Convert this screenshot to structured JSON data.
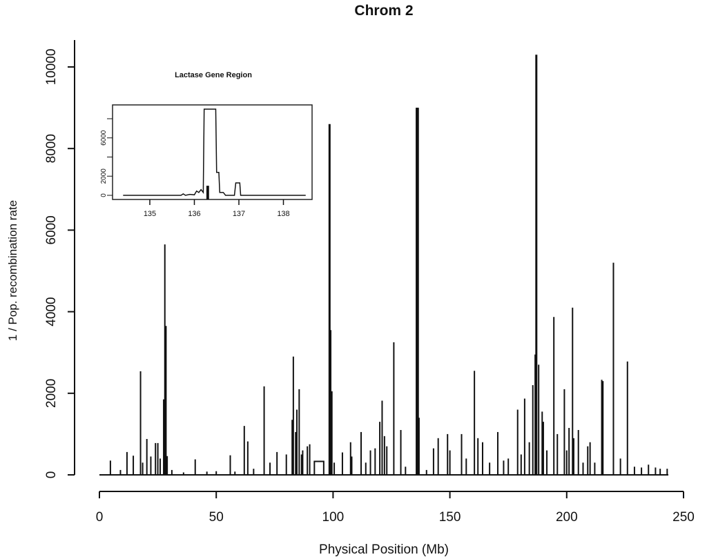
{
  "chart_data": {
    "type": "line",
    "title": "Chrom 2",
    "xlabel": "Physical Position (Mb)",
    "ylabel": "1 / Pop. recombination rate",
    "xlim": [
      0,
      250
    ],
    "ylim": [
      0,
      10000
    ],
    "xticks": [
      0,
      50,
      100,
      150,
      200,
      250
    ],
    "yticks": [
      0,
      2000,
      4000,
      6000,
      8000,
      10000
    ],
    "grid": false,
    "spikes": [
      [
        4.7,
        350
      ],
      [
        9,
        120
      ],
      [
        11.8,
        560
      ],
      [
        14.5,
        470
      ],
      [
        17.6,
        2540
      ],
      [
        18.5,
        300
      ],
      [
        20.3,
        880
      ],
      [
        22,
        450
      ],
      [
        24,
        780
      ],
      [
        25,
        780
      ],
      [
        26,
        400
      ],
      [
        27.5,
        1850
      ],
      [
        28,
        5650
      ],
      [
        28.5,
        3650
      ],
      [
        29,
        460
      ],
      [
        31,
        120
      ],
      [
        36,
        60
      ],
      [
        41,
        380
      ],
      [
        46,
        80
      ],
      [
        50,
        90
      ],
      [
        56,
        480
      ],
      [
        58,
        80
      ],
      [
        62,
        1200
      ],
      [
        63.5,
        820
      ],
      [
        66,
        150
      ],
      [
        70.5,
        2170
      ],
      [
        73,
        300
      ],
      [
        76,
        560
      ],
      [
        80,
        500
      ],
      [
        82.5,
        1350
      ],
      [
        83,
        2900
      ],
      [
        84,
        1050
      ],
      [
        84.5,
        1600
      ],
      [
        85.5,
        2100
      ],
      [
        86.5,
        500
      ],
      [
        87,
        600
      ],
      [
        89,
        700
      ],
      [
        90,
        750
      ],
      [
        98.5,
        8600
      ],
      [
        99,
        3550
      ],
      [
        99.5,
        2050
      ],
      [
        100.5,
        300
      ],
      [
        104,
        550
      ],
      [
        107.5,
        800
      ],
      [
        108,
        450
      ],
      [
        112,
        1050
      ],
      [
        114,
        300
      ],
      [
        116,
        600
      ],
      [
        118,
        650
      ],
      [
        120,
        1300
      ],
      [
        121,
        1820
      ],
      [
        122,
        950
      ],
      [
        123,
        700
      ],
      [
        126,
        3250
      ],
      [
        129,
        1100
      ],
      [
        131,
        200
      ],
      [
        135.8,
        9000
      ],
      [
        136,
        9000
      ],
      [
        136.3,
        9000
      ],
      [
        136.8,
        1400
      ],
      [
        140,
        120
      ],
      [
        143,
        650
      ],
      [
        145,
        900
      ],
      [
        149,
        1000
      ],
      [
        150,
        600
      ],
      [
        155,
        1000
      ],
      [
        157,
        400
      ],
      [
        160.5,
        2550
      ],
      [
        162,
        900
      ],
      [
        164,
        800
      ],
      [
        167,
        300
      ],
      [
        170.5,
        1050
      ],
      [
        173,
        350
      ],
      [
        175,
        400
      ],
      [
        179,
        1600
      ],
      [
        180.5,
        500
      ],
      [
        182,
        1870
      ],
      [
        184,
        800
      ],
      [
        185.5,
        2200
      ],
      [
        186.5,
        2950
      ],
      [
        187,
        10300
      ],
      [
        188,
        2700
      ],
      [
        189.5,
        1550
      ],
      [
        190,
        1300
      ],
      [
        191.5,
        600
      ],
      [
        194.5,
        3870
      ],
      [
        196,
        1000
      ],
      [
        199,
        2100
      ],
      [
        200,
        600
      ],
      [
        201,
        1150
      ],
      [
        202.5,
        4100
      ],
      [
        203,
        900
      ],
      [
        205,
        1100
      ],
      [
        207,
        300
      ],
      [
        209,
        700
      ],
      [
        210,
        800
      ],
      [
        212,
        300
      ],
      [
        215,
        2330
      ],
      [
        215.5,
        2300
      ],
      [
        220,
        5200
      ],
      [
        223,
        400
      ],
      [
        226,
        2780
      ],
      [
        229,
        200
      ],
      [
        232,
        180
      ],
      [
        235,
        250
      ],
      [
        238,
        180
      ],
      [
        240,
        150
      ],
      [
        243,
        150
      ]
    ],
    "plateau": {
      "x": [
        92,
        96
      ],
      "y": 330
    },
    "x_end": 243.5,
    "inset": {
      "title": "Lactase Gene Region",
      "xlim": [
        134.2,
        138.7
      ],
      "ylim": [
        0,
        9500
      ],
      "xticks": [
        135,
        136,
        137,
        138
      ],
      "yticks_labeled": [
        0,
        2000,
        6000
      ],
      "yticks": [
        0,
        2000,
        4000,
        6000,
        8000
      ],
      "x_range": [
        134.4,
        138.5
      ],
      "series": [
        [
          134.4,
          0
        ],
        [
          135.7,
          0
        ],
        [
          135.75,
          150
        ],
        [
          135.8,
          0
        ],
        [
          135.9,
          100
        ],
        [
          136.0,
          50
        ],
        [
          136.05,
          450
        ],
        [
          136.1,
          300
        ],
        [
          136.15,
          600
        ],
        [
          136.2,
          300
        ],
        [
          136.22,
          9000
        ],
        [
          136.48,
          9000
        ],
        [
          136.5,
          2400
        ],
        [
          136.55,
          2400
        ],
        [
          136.57,
          300
        ],
        [
          136.65,
          300
        ],
        [
          136.7,
          0
        ],
        [
          136.9,
          0
        ],
        [
          136.93,
          1300
        ],
        [
          137.02,
          1300
        ],
        [
          137.04,
          0
        ],
        [
          138.5,
          0
        ]
      ],
      "black_bar": {
        "x": [
          136.27,
          136.33
        ],
        "y": 1000
      }
    }
  }
}
